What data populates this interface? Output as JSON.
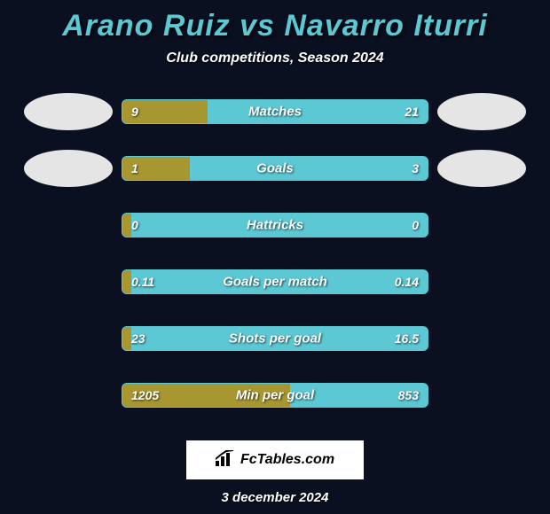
{
  "title": "Arano Ruiz vs Navarro Iturri",
  "subtitle": "Club competitions, Season 2024",
  "date": "3 december 2024",
  "footer": {
    "brand": "FcTables.com"
  },
  "colors": {
    "background": "#0a1020",
    "accent": "#5bc8d4",
    "left_bar": "#a89730",
    "right_bar": "#5bc8d4",
    "text": "#ffffff"
  },
  "stats": [
    {
      "label": "Matches",
      "left_value": "9",
      "right_value": "21",
      "left_pct": 28,
      "show_avatars": true
    },
    {
      "label": "Goals",
      "left_value": "1",
      "right_value": "3",
      "left_pct": 22,
      "show_avatars": true
    },
    {
      "label": "Hattricks",
      "left_value": "0",
      "right_value": "0",
      "left_pct": 3,
      "show_avatars": false
    },
    {
      "label": "Goals per match",
      "left_value": "0.11",
      "right_value": "0.14",
      "left_pct": 3,
      "show_avatars": false
    },
    {
      "label": "Shots per goal",
      "left_value": "23",
      "right_value": "16.5",
      "left_pct": 3,
      "show_avatars": false
    },
    {
      "label": "Min per goal",
      "left_value": "1205",
      "right_value": "853",
      "left_pct": 55,
      "show_avatars": false
    }
  ]
}
